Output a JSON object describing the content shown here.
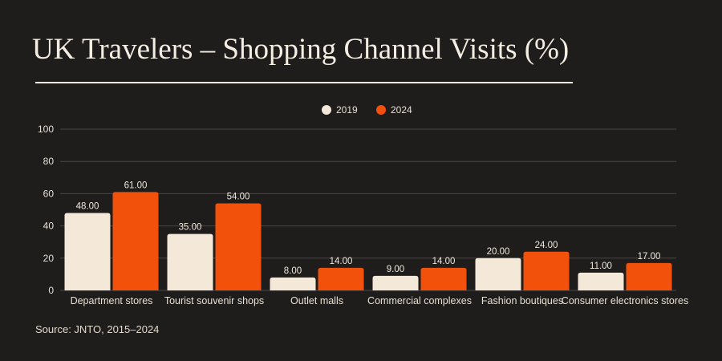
{
  "header": {
    "title": "UK Travelers – Shopping Channel Visits (%)"
  },
  "footer": {
    "source": "Source: JNTO, 2015–2024"
  },
  "colors": {
    "background": "#1f1c1c",
    "series_2019": "#f4e8d8",
    "series_2024": "#f2510c",
    "grid": "#4a4646"
  },
  "chart_data": {
    "type": "bar",
    "title": "UK Travelers – Shopping Channel Visits (%)",
    "xlabel": "",
    "ylabel": "",
    "ylim": [
      0,
      100
    ],
    "yticks": [
      0,
      20,
      40,
      60,
      80,
      100
    ],
    "grid": true,
    "legend_position": "top-center",
    "categories": [
      "Department stores",
      "Tourist souvenir shops",
      "Outlet malls",
      "Commercial complexes",
      "Fashion boutiques",
      "Consumer electronics stores"
    ],
    "series": [
      {
        "name": "2019",
        "color": "#f4e8d8",
        "values": [
          48,
          35,
          8,
          9,
          20,
          11
        ]
      },
      {
        "name": "2024",
        "color": "#f2510c",
        "values": [
          61,
          54,
          14,
          14,
          24,
          17
        ]
      }
    ]
  }
}
